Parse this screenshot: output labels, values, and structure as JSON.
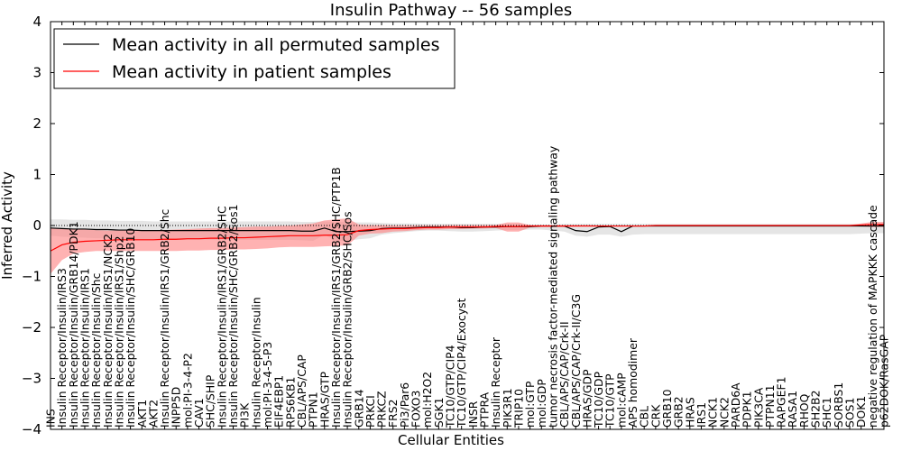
{
  "chart_data": {
    "type": "line",
    "title": "Insulin Pathway -- 56 samples",
    "xlabel": "Cellular Entities",
    "ylabel": "Inferred Activity",
    "ylim": [
      -4,
      4
    ],
    "yticks": [
      -4,
      -3,
      -2,
      -1,
      0,
      1,
      2,
      3,
      4
    ],
    "legend_position": "top-left",
    "colors": {
      "permuted": "#000000",
      "patient": "#ff0000",
      "permuted_band": "#d3d3d3",
      "patient_band": "#ff7f7f"
    },
    "categories": [
      "INS",
      "Insulin Receptor/Insulin/IRS3",
      "Insulin Receptor/Insulin/GRB14/PDK1",
      "Insulin Receptor/Insulin/IRS1",
      "Insulin Receptor/Insulin/Shc",
      "Insulin Receptor/Insulin/IRS1/NCK2",
      "Insulin Receptor/Insulin/IRS1/Shp2",
      "Insulin Receptor/Insulin/SHC/GRB10",
      "AKT1",
      "AKT2",
      "Insulin Receptor/Insulin/IRS1/GRB2/Shc",
      "INPP5D",
      "mol:PI-3-4-P2",
      "CAV1",
      "SHC/SHIP",
      "Insulin Receptor/Insulin/IRS1/GRB2/SHC",
      "Insulin Receptor/Insulin/SHC/GRB2/Sos1",
      "PI3K",
      "Insulin Receptor/Insulin",
      "mol:PI-3-4-5-P3",
      "EIF4EBP1",
      "RPS6KB1",
      "CBL/APS/CAP",
      "PTPN1",
      "HRAS/GTP",
      "Insulin Receptor/Insulin/IRS1/GRB2/SHC/PTP1B",
      "Insulin Receptor/Insulin/GRB2/SHC/Sos",
      "GRB14",
      "PRKCI",
      "PRKCZ",
      "FRS2",
      "Pi3/Par6",
      "FOXO3",
      "mol:H2O2",
      "SGK1",
      "TC10/GTP/CIP4",
      "TC10/GTP/CIP4/Exocyst",
      "INSR",
      "PTPRA",
      "Insulin Receptor",
      "PIK3R1",
      "TRIP10",
      "mol:GTP",
      "mol:GDP",
      "tumor necrosis factor-mediated signaling pathway",
      "CBL/APS/CAP/Crk-II",
      "CBL/APS/CAP/Crk-II/C3G",
      "HRAS/GDP",
      "TC10/GDP",
      "TC10/GTP",
      "mol:cAMP",
      "APS homodimer",
      "CBL",
      "CRK",
      "GRB10",
      "GRB2",
      "HRAS",
      "IRS1",
      "NCK1",
      "NCK2",
      "PARD6A",
      "PDPK1",
      "PIK3CA",
      "PTPN11",
      "RAPGEF1",
      "RASA1",
      "RHOQ",
      "SH2B2",
      "SHC1",
      "SORBS1",
      "SOS1",
      "DOK1",
      "negative regulation of MAPKKK cascade",
      "p62DOK/RasGAP"
    ],
    "series": [
      {
        "name": "Mean activity in all permuted samples",
        "values": [
          -0.05,
          -0.06,
          -0.07,
          -0.07,
          -0.08,
          -0.08,
          -0.09,
          -0.09,
          -0.1,
          -0.1,
          -0.1,
          -0.1,
          -0.1,
          -0.1,
          -0.1,
          -0.1,
          -0.1,
          -0.1,
          -0.1,
          -0.1,
          -0.1,
          -0.1,
          -0.11,
          -0.11,
          -0.05,
          -0.12,
          -0.12,
          -0.11,
          -0.1,
          -0.06,
          -0.05,
          -0.05,
          -0.04,
          -0.03,
          -0.03,
          -0.03,
          -0.04,
          -0.04,
          -0.03,
          -0.03,
          -0.02,
          -0.02,
          -0.02,
          -0.01,
          -0.01,
          -0.01,
          -0.1,
          -0.12,
          -0.03,
          -0.02,
          -0.12,
          -0.01,
          -0.01,
          -0.01,
          -0.01,
          -0.01,
          -0.01,
          -0.01,
          -0.01,
          -0.01,
          -0.01,
          -0.01,
          -0.01,
          -0.01,
          -0.01,
          -0.01,
          -0.01,
          -0.01,
          -0.01,
          -0.01,
          -0.01,
          -0.01,
          -0.01,
          -0.01
        ],
        "band_low": [
          -0.2,
          -0.22,
          -0.23,
          -0.24,
          -0.25,
          -0.25,
          -0.26,
          -0.26,
          -0.27,
          -0.27,
          -0.28,
          -0.28,
          -0.28,
          -0.28,
          -0.28,
          -0.28,
          -0.28,
          -0.28,
          -0.28,
          -0.28,
          -0.28,
          -0.28,
          -0.29,
          -0.3,
          -0.18,
          -0.3,
          -0.3,
          -0.27,
          -0.25,
          -0.18,
          -0.15,
          -0.13,
          -0.11,
          -0.1,
          -0.1,
          -0.11,
          -0.12,
          -0.12,
          -0.11,
          -0.1,
          -0.09,
          -0.09,
          -0.08,
          -0.08,
          -0.1,
          -0.12,
          -0.2,
          -0.22,
          -0.18,
          -0.18,
          -0.22,
          -0.18,
          -0.17,
          -0.17,
          -0.17,
          -0.17,
          -0.17,
          -0.17,
          -0.17,
          -0.17,
          -0.17,
          -0.17,
          -0.17,
          -0.17,
          -0.17,
          -0.17,
          -0.17,
          -0.17,
          -0.17,
          -0.17,
          -0.17,
          -0.16,
          -0.15,
          -0.15
        ],
        "band_high": [
          0.12,
          0.12,
          0.11,
          0.11,
          0.1,
          0.1,
          0.09,
          0.09,
          0.09,
          0.08,
          0.08,
          0.08,
          0.08,
          0.08,
          0.08,
          0.08,
          0.08,
          0.08,
          0.08,
          0.08,
          0.08,
          0.08,
          0.07,
          0.07,
          0.08,
          0.07,
          0.07,
          0.06,
          0.06,
          0.05,
          0.04,
          0.04,
          0.04,
          0.03,
          0.03,
          0.03,
          0.03,
          0.03,
          0.03,
          0.03,
          0.03,
          0.03,
          0.02,
          0.02,
          0.02,
          0.03,
          0.03,
          0.03,
          0.03,
          0.03,
          0.03,
          0.03,
          0.03,
          0.03,
          0.03,
          0.03,
          0.03,
          0.03,
          0.03,
          0.03,
          0.03,
          0.03,
          0.03,
          0.03,
          0.03,
          0.03,
          0.03,
          0.03,
          0.03,
          0.03,
          0.03,
          0.03,
          0.03,
          0.03
        ]
      },
      {
        "name": "Mean activity in patient samples",
        "values": [
          -0.5,
          -0.38,
          -0.33,
          -0.31,
          -0.3,
          -0.29,
          -0.28,
          -0.28,
          -0.28,
          -0.28,
          -0.27,
          -0.27,
          -0.26,
          -0.26,
          -0.25,
          -0.25,
          -0.24,
          -0.24,
          -0.23,
          -0.22,
          -0.21,
          -0.2,
          -0.2,
          -0.2,
          -0.19,
          -0.19,
          -0.18,
          -0.1,
          -0.08,
          -0.07,
          -0.06,
          -0.06,
          -0.05,
          -0.04,
          -0.04,
          -0.03,
          -0.03,
          -0.03,
          -0.03,
          -0.02,
          -0.02,
          -0.02,
          -0.01,
          -0.01,
          -0.01,
          -0.01,
          -0.01,
          -0.01,
          -0.01,
          -0.01,
          -0.01,
          -0.01,
          -0.01,
          0,
          0,
          0,
          0,
          0,
          0,
          0,
          0,
          0,
          0,
          0,
          0,
          0,
          0,
          0,
          0,
          0,
          0,
          0.01,
          0.02,
          0.02
        ],
        "band_low": [
          -0.95,
          -0.68,
          -0.55,
          -0.52,
          -0.5,
          -0.5,
          -0.5,
          -0.5,
          -0.5,
          -0.5,
          -0.5,
          -0.5,
          -0.49,
          -0.49,
          -0.48,
          -0.48,
          -0.47,
          -0.47,
          -0.46,
          -0.45,
          -0.43,
          -0.42,
          -0.42,
          -0.42,
          -0.41,
          -0.4,
          -0.39,
          -0.2,
          -0.16,
          -0.15,
          -0.12,
          -0.11,
          -0.09,
          -0.08,
          -0.08,
          -0.07,
          -0.07,
          -0.06,
          -0.06,
          -0.05,
          -0.12,
          -0.12,
          -0.04,
          -0.03,
          -0.03,
          -0.03,
          -0.02,
          -0.02,
          -0.02,
          -0.02,
          -0.02,
          -0.02,
          -0.02,
          -0.01,
          -0.01,
          -0.01,
          -0.01,
          -0.01,
          -0.01,
          -0.01,
          -0.01,
          -0.01,
          -0.01,
          -0.01,
          -0.01,
          -0.01,
          -0.01,
          -0.01,
          -0.01,
          -0.01,
          -0.01,
          -0.02,
          -0.03,
          -0.03
        ],
        "band_high": [
          -0.05,
          -0.06,
          -0.07,
          -0.08,
          -0.09,
          -0.1,
          -0.1,
          -0.1,
          -0.1,
          -0.1,
          -0.09,
          -0.08,
          -0.07,
          -0.06,
          -0.05,
          -0.05,
          -0.04,
          -0.03,
          -0.02,
          -0.02,
          -0.01,
          0,
          0.02,
          0.04,
          0.1,
          0.12,
          0.14,
          0.02,
          0.01,
          0.01,
          0,
          0,
          0,
          0,
          0,
          0.01,
          0.01,
          0.01,
          0.01,
          0.01,
          0.06,
          0.06,
          0.01,
          0.01,
          0.01,
          0.01,
          0.01,
          0.01,
          0,
          0,
          0,
          0,
          0,
          0.01,
          0.01,
          0.01,
          0.01,
          0.01,
          0.01,
          0.01,
          0.01,
          0.01,
          0.01,
          0.01,
          0.01,
          0.01,
          0.01,
          0.01,
          0.01,
          0.01,
          0.01,
          0.04,
          0.07,
          0.07
        ]
      }
    ]
  }
}
